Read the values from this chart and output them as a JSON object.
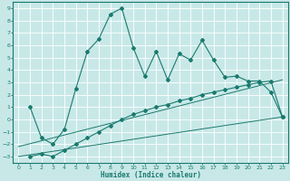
{
  "xlabel": "Humidex (Indice chaleur)",
  "bg_color": "#c8e8e8",
  "grid_color": "#ffffff",
  "line_color": "#1a7a6e",
  "xlim": [
    -0.5,
    23.5
  ],
  "ylim": [
    -3.5,
    9.5
  ],
  "xticks": [
    0,
    1,
    2,
    3,
    4,
    5,
    6,
    7,
    8,
    9,
    10,
    11,
    12,
    13,
    14,
    15,
    16,
    17,
    18,
    19,
    20,
    21,
    22,
    23
  ],
  "yticks": [
    -3,
    -2,
    -1,
    0,
    1,
    2,
    3,
    4,
    5,
    6,
    7,
    8,
    9
  ],
  "series1_x": [
    1,
    2,
    3,
    4,
    5,
    6,
    7,
    8,
    9,
    10,
    11,
    12,
    13,
    14,
    15,
    16,
    17,
    18,
    19,
    20,
    21,
    22,
    23
  ],
  "series1_y": [
    1.0,
    -1.5,
    -2.0,
    -0.8,
    2.5,
    5.5,
    6.5,
    8.5,
    9.0,
    5.8,
    3.5,
    5.5,
    3.2,
    5.3,
    4.8,
    6.4,
    4.8,
    3.4,
    3.5,
    3.1,
    3.1,
    2.2,
    0.2
  ],
  "series2_x": [
    1,
    2,
    3,
    4,
    5,
    6,
    7,
    8,
    9,
    10,
    11,
    12,
    13,
    14,
    15,
    16,
    17,
    18,
    19,
    20,
    21,
    22,
    23
  ],
  "series2_y": [
    -3.0,
    -2.8,
    -3.0,
    -2.5,
    -2.0,
    -1.5,
    -1.0,
    -0.5,
    0.0,
    0.4,
    0.7,
    1.0,
    1.2,
    1.5,
    1.7,
    2.0,
    2.2,
    2.4,
    2.6,
    2.8,
    3.0,
    3.1,
    0.2
  ],
  "line1_x": [
    0,
    23
  ],
  "line1_y": [
    -3.0,
    0.2
  ],
  "line2_x": [
    0,
    23
  ],
  "line2_y": [
    -2.2,
    3.2
  ]
}
